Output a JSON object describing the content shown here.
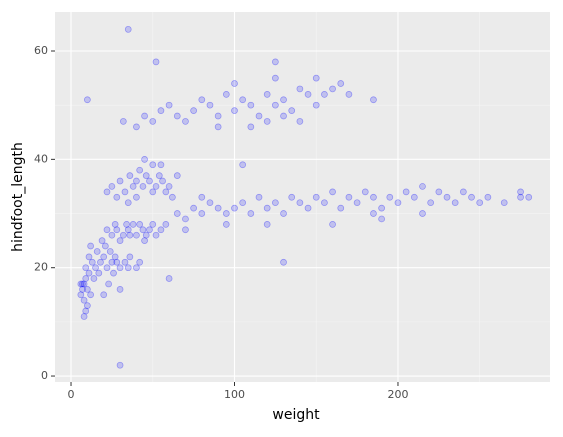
{
  "chart_data": {
    "type": "scatter",
    "x_label": "weight",
    "y_label": "hindfoot_length",
    "color": "#0000ff",
    "grid": true,
    "xlim": [
      -9.8,
      293
    ],
    "ylim": [
      -1.1,
      67.2
    ],
    "xticks": [
      0,
      100,
      200
    ],
    "yticks": [
      0,
      20,
      40,
      60
    ],
    "x": [
      7,
      8,
      9,
      6,
      10,
      8,
      11,
      12,
      9,
      7,
      13,
      14,
      10,
      6,
      8,
      11,
      12,
      15,
      16,
      9,
      18,
      20,
      22,
      24,
      19,
      17,
      21,
      25,
      27,
      30,
      28,
      33,
      36,
      40,
      42,
      26,
      23,
      30,
      20,
      35,
      25,
      28,
      32,
      35,
      38,
      40,
      44,
      48,
      50,
      52,
      30,
      36,
      42,
      46,
      55,
      22,
      27,
      34,
      45,
      58,
      22,
      25,
      28,
      30,
      33,
      36,
      38,
      40,
      42,
      44,
      46,
      48,
      50,
      52,
      54,
      56,
      58,
      45,
      35,
      60,
      62,
      65,
      40,
      50,
      55,
      65,
      70,
      75,
      80,
      85,
      90,
      95,
      100,
      105,
      110,
      115,
      120,
      125,
      130,
      135,
      140,
      145,
      150,
      155,
      160,
      165,
      170,
      175,
      180,
      185,
      190,
      195,
      200,
      205,
      210,
      215,
      220,
      225,
      230,
      235,
      240,
      245,
      250,
      255,
      265,
      275,
      280,
      70,
      80,
      95,
      120,
      160,
      185,
      215,
      32,
      40,
      45,
      50,
      55,
      60,
      65,
      70,
      75,
      80,
      85,
      90,
      95,
      100,
      105,
      110,
      115,
      120,
      125,
      130,
      135,
      140,
      145,
      150,
      155,
      160,
      165,
      170,
      110,
      120,
      130,
      140,
      100,
      125,
      150,
      90,
      35,
      52,
      30,
      125,
      185,
      10,
      190,
      130,
      105,
      275,
      60
    ],
    "values": [
      16,
      14,
      18,
      15,
      13,
      17,
      19,
      15,
      12,
      17,
      21,
      18,
      16,
      17,
      11,
      22,
      24,
      20,
      23,
      20,
      21,
      22,
      20,
      23,
      25,
      19,
      24,
      21,
      22,
      20,
      21,
      21,
      22,
      20,
      21,
      19,
      17,
      16,
      15,
      20,
      26,
      27,
      26,
      27,
      28,
      26,
      27,
      27,
      28,
      26,
      25,
      26,
      28,
      26,
      27,
      27,
      28,
      28,
      25,
      28,
      34,
      35,
      33,
      36,
      34,
      37,
      35,
      36,
      38,
      35,
      37,
      36,
      39,
      35,
      37,
      36,
      34,
      40,
      32,
      35,
      33,
      37,
      33,
      34,
      39,
      30,
      29,
      31,
      30,
      32,
      31,
      30,
      31,
      32,
      30,
      33,
      31,
      32,
      30,
      33,
      32,
      31,
      33,
      32,
      34,
      31,
      33,
      32,
      34,
      33,
      31,
      33,
      32,
      34,
      33,
      35,
      32,
      34,
      33,
      32,
      34,
      33,
      32,
      33,
      32,
      34,
      33,
      27,
      33,
      28,
      28,
      28,
      30,
      30,
      47,
      46,
      48,
      47,
      49,
      50,
      48,
      47,
      49,
      51,
      50,
      48,
      52,
      49,
      51,
      50,
      48,
      52,
      50,
      51,
      49,
      53,
      52,
      50,
      52,
      53,
      54,
      52,
      46,
      47,
      48,
      47,
      54,
      55,
      55,
      46,
      64,
      58,
      2,
      58,
      51,
      51,
      29,
      21,
      39,
      33,
      18
    ]
  }
}
